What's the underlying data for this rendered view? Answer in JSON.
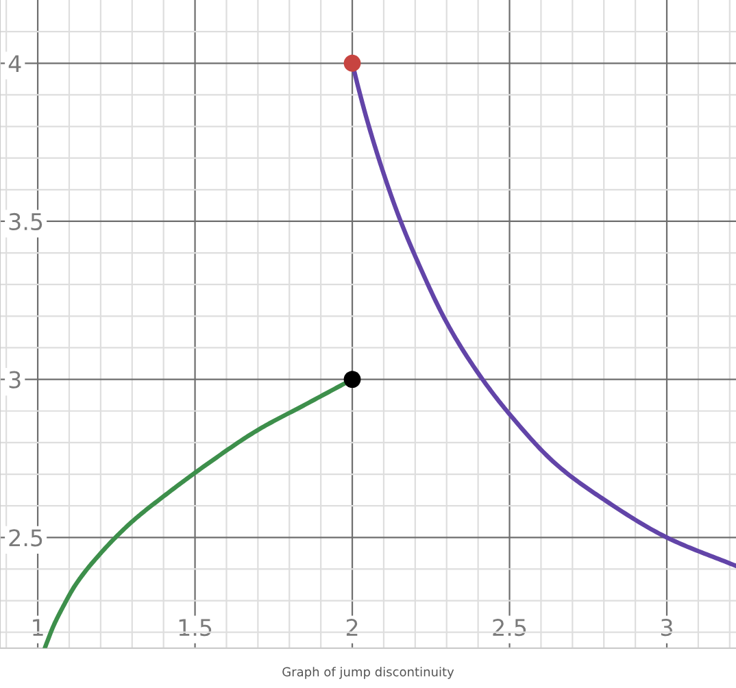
{
  "chart_data": {
    "type": "line",
    "annotations": [
      "Graph of jump discontinuity"
    ],
    "series": [
      {
        "color": "#3d8f4b",
        "line_style": "solid",
        "marker": "none",
        "x": [
          1.0225,
          1.03,
          1.05,
          1.08,
          1.12,
          1.2,
          1.3,
          1.4,
          1.55,
          1.7,
          1.85,
          2.0
        ],
        "values": [
          2.15,
          2.17,
          2.22,
          2.28,
          2.35,
          2.45,
          2.55,
          2.63,
          2.74,
          2.84,
          2.92,
          3.0
        ]
      },
      {
        "color": "#6244a8",
        "line_style": "solid",
        "marker": "none",
        "x": [
          2.0,
          2.02,
          2.05,
          2.1,
          2.15,
          2.2,
          2.3,
          2.4,
          2.5,
          2.65,
          2.8,
          3.0,
          3.22
        ],
        "values": [
          4.0,
          3.92,
          3.81,
          3.65,
          3.51,
          3.39,
          3.18,
          3.02,
          2.89,
          2.73,
          2.62,
          2.5,
          2.41
        ]
      },
      {
        "type": "scatter",
        "color": "#c74440",
        "marker": "circle",
        "x": [
          2.0
        ],
        "values": [
          4.0
        ]
      },
      {
        "type": "scatter",
        "color": "#000000",
        "marker": "circle",
        "x": [
          2.0
        ],
        "values": [
          3.0
        ]
      }
    ],
    "xlim": [
      0.88,
      3.22
    ],
    "ylim": [
      2.15,
      4.2
    ],
    "xticks": [
      {
        "value": 0.9,
        "label": null
      },
      1,
      {
        "value": 1.1,
        "label": null
      },
      {
        "value": 1.2,
        "label": null
      },
      {
        "value": 1.3,
        "label": null
      },
      {
        "value": 1.4,
        "label": null
      },
      1.5,
      {
        "value": 1.6,
        "label": null
      },
      {
        "value": 1.7,
        "label": null
      },
      {
        "value": 1.8,
        "label": null
      },
      {
        "value": 1.9,
        "label": null
      },
      2,
      {
        "value": 2.1,
        "label": null
      },
      {
        "value": 2.2,
        "label": null
      },
      {
        "value": 2.3,
        "label": null
      },
      {
        "value": 2.4,
        "label": null
      },
      2.5,
      {
        "value": 2.6,
        "label": null
      },
      {
        "value": 2.7,
        "label": null
      },
      {
        "value": 2.8,
        "label": null
      },
      {
        "value": 2.9,
        "label": null
      },
      3,
      {
        "value": 3.1,
        "label": null
      },
      {
        "value": 3.2,
        "label": null
      }
    ],
    "yticks": [
      {
        "value": 2.2,
        "label": null
      },
      {
        "value": 2.3,
        "label": null
      },
      {
        "value": 2.4,
        "label": null
      },
      2.5,
      {
        "value": 2.6,
        "label": null
      },
      {
        "value": 2.7,
        "label": null
      },
      {
        "value": 2.8,
        "label": null
      },
      {
        "value": 2.9,
        "label": null
      },
      3,
      {
        "value": 3.1,
        "label": null
      },
      {
        "value": 3.2,
        "label": null
      },
      {
        "value": 3.3,
        "label": null
      },
      {
        "value": 3.4,
        "label": null
      },
      3.5,
      {
        "value": 3.6,
        "label": null
      },
      {
        "value": 3.7,
        "label": null
      },
      {
        "value": 3.8,
        "label": null
      },
      {
        "value": 3.9,
        "label": null
      },
      4,
      {
        "value": 4.1,
        "label": null
      }
    ],
    "grid": true
  }
}
